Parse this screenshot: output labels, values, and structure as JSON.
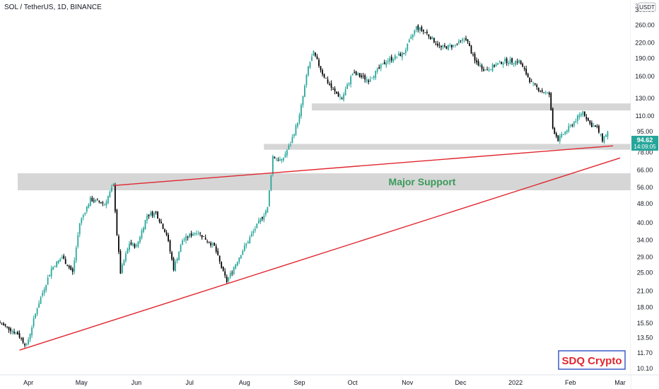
{
  "header": {
    "title": "SOL / TetherUS, 1D, BINANCE",
    "currency_badge": "USDT",
    "corner_label": "3"
  },
  "last_price": {
    "value": "94.62",
    "countdown": "14:09:05",
    "color": "#26a69a"
  },
  "annotations": {
    "major_support_label": "Major Support",
    "watermark": "SDQ Crypto"
  },
  "colors": {
    "up": "#26a69a",
    "down": "#000000",
    "trendline": "#e0262e",
    "zone": "#d6d6d6",
    "support_text": "#3a9a5b",
    "watermark": "#e0262e"
  },
  "chart_data": {
    "type": "candlestick",
    "title": "SOL / TetherUS, 1D, BINANCE",
    "y_scale": "log",
    "ylim": [
      9.5,
      330
    ],
    "y_ticks": [
      "300.00",
      "260.00",
      "220.00",
      "190.00",
      "160.00",
      "130.00",
      "110.00",
      "95.00",
      "78.00",
      "66.00",
      "56.00",
      "48.00",
      "40.00",
      "34.00",
      "29.00",
      "25.00",
      "21.00",
      "18.00",
      "15.50",
      "13.50",
      "11.70",
      "10.10"
    ],
    "x_ticks": [
      "Apr",
      "May",
      "Jun",
      "Jul",
      "Aug",
      "Sep",
      "Oct",
      "Nov",
      "Dec",
      "2022",
      "Feb",
      "Mar"
    ],
    "xlim": [
      "2021-03-16",
      "2022-03-07"
    ],
    "price_path": [
      [
        "2021-03-16",
        15.5
      ],
      [
        "2021-03-26",
        14.0
      ],
      [
        "2021-03-31",
        12.5
      ],
      [
        "2021-04-06",
        18.0
      ],
      [
        "2021-04-14",
        26.0
      ],
      [
        "2021-04-20",
        29.0
      ],
      [
        "2021-04-26",
        25.0
      ],
      [
        "2021-04-30",
        40.0
      ],
      [
        "2021-05-06",
        50.0
      ],
      [
        "2021-05-14",
        48.0
      ],
      [
        "2021-05-19",
        57.0
      ],
      [
        "2021-05-21",
        36.0
      ],
      [
        "2021-05-23",
        25.0
      ],
      [
        "2021-05-28",
        33.0
      ],
      [
        "2021-06-01",
        32.0
      ],
      [
        "2021-06-07",
        43.0
      ],
      [
        "2021-06-12",
        44.0
      ],
      [
        "2021-06-18",
        36.0
      ],
      [
        "2021-06-22",
        26.0
      ],
      [
        "2021-06-27",
        34.0
      ],
      [
        "2021-07-05",
        37.0
      ],
      [
        "2021-07-15",
        32.0
      ],
      [
        "2021-07-20",
        25.0
      ],
      [
        "2021-07-22",
        23.0
      ],
      [
        "2021-07-30",
        30.0
      ],
      [
        "2021-08-07",
        38.0
      ],
      [
        "2021-08-14",
        46.0
      ],
      [
        "2021-08-17",
        75.0
      ],
      [
        "2021-08-22",
        72.0
      ],
      [
        "2021-08-27",
        85.0
      ],
      [
        "2021-09-01",
        110.0
      ],
      [
        "2021-09-06",
        175.0
      ],
      [
        "2021-09-09",
        200.0
      ],
      [
        "2021-09-14",
        165.0
      ],
      [
        "2021-09-20",
        140.0
      ],
      [
        "2021-09-25",
        130.0
      ],
      [
        "2021-10-01",
        165.0
      ],
      [
        "2021-10-10",
        155.0
      ],
      [
        "2021-10-20",
        185.0
      ],
      [
        "2021-10-30",
        200.0
      ],
      [
        "2021-11-06",
        255.0
      ],
      [
        "2021-11-12",
        240.0
      ],
      [
        "2021-11-20",
        210.0
      ],
      [
        "2021-11-28",
        215.0
      ],
      [
        "2021-12-04",
        230.0
      ],
      [
        "2021-12-09",
        185.0
      ],
      [
        "2021-12-15",
        170.0
      ],
      [
        "2021-12-25",
        185.0
      ],
      [
        "2022-01-03",
        185.0
      ],
      [
        "2022-01-10",
        150.0
      ],
      [
        "2022-01-15",
        140.0
      ],
      [
        "2022-01-20",
        135.0
      ],
      [
        "2022-01-22",
        98.0
      ],
      [
        "2022-01-25",
        88.0
      ],
      [
        "2022-02-01",
        100.0
      ],
      [
        "2022-02-08",
        115.0
      ],
      [
        "2022-02-12",
        102.0
      ],
      [
        "2022-02-16",
        98.0
      ],
      [
        "2022-02-19",
        88.0
      ],
      [
        "2022-02-22",
        94.62
      ]
    ],
    "zones": [
      {
        "from": "2021-09-08",
        "y1": 116,
        "y2": 124
      },
      {
        "from": "2021-08-12",
        "y1": 80,
        "y2": 84.5
      },
      {
        "from": "2021-03-26",
        "y1": 54.5,
        "y2": 64
      }
    ],
    "trendlines": [
      {
        "from": [
          "2021-03-27",
          12.0
        ],
        "to": [
          "2022-03-01",
          74.0
        ]
      },
      {
        "from": [
          "2021-05-19",
          57.0
        ],
        "to": [
          "2022-02-25",
          83.0
        ]
      }
    ]
  }
}
